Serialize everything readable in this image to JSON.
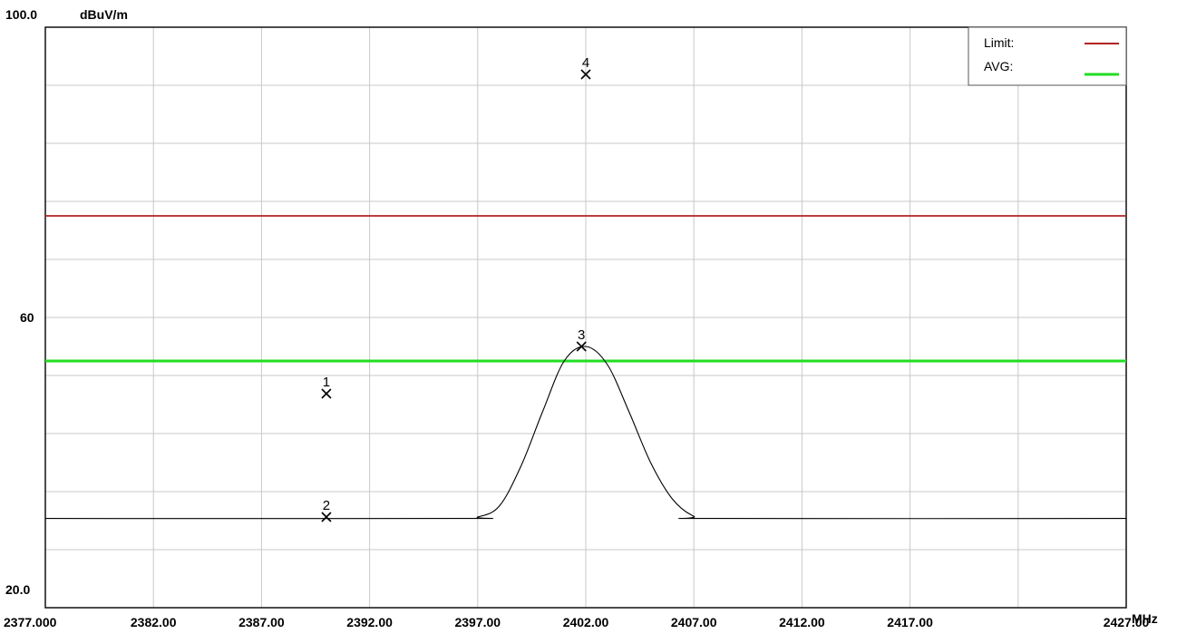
{
  "chart_data": {
    "type": "line",
    "y_unit_label": "dBuV/m",
    "x_unit_label": "MHz",
    "xlim": [
      2377.0,
      2427.0
    ],
    "ylim": [
      20.0,
      100.0
    ],
    "x_ticks": [
      2377.0,
      2382.0,
      2387.0,
      2392.0,
      2397.0,
      2402.0,
      2407.0,
      2412.0,
      2417.0,
      2427.0
    ],
    "x_tick_labels": [
      "2377.000",
      "2382.00",
      "2387.00",
      "2392.00",
      "2397.00",
      "2402.00",
      "2407.00",
      "2412.00",
      "2417.00",
      "2427.00"
    ],
    "y_tick_values": [
      100.0,
      60.0,
      20.0
    ],
    "y_tick_labels": [
      "100.0",
      "60",
      "20.0"
    ],
    "grid": true,
    "x_gridlines": [
      2377.0,
      2382.0,
      2387.0,
      2392.0,
      2397.0,
      2402.0,
      2407.0,
      2412.0,
      2417.0,
      2422.0,
      2427.0
    ],
    "y_gridlines": [
      20,
      28,
      36,
      44,
      52,
      60,
      68,
      76,
      84,
      92,
      100
    ],
    "legend_position": "top-right",
    "legend": [
      {
        "label": "Limit:",
        "color": "#b22222"
      },
      {
        "label": "AVG:",
        "color": "#22dd22"
      }
    ],
    "limit_lines": [
      {
        "name": "Limit",
        "value": 74.0,
        "color": "#b22222"
      },
      {
        "name": "AVG",
        "value": 54.0,
        "color": "#22dd22"
      }
    ],
    "series": [
      {
        "color": "#000000",
        "x": [
          2377.0,
          2396.0,
          2397.0,
          2398.0,
          2399.0,
          2400.0,
          2401.0,
          2402.0,
          2403.0,
          2404.0,
          2405.0,
          2406.0,
          2407.0,
          2408.0,
          2427.0
        ],
        "y": [
          32.3,
          32.3,
          32.5,
          34.0,
          39.5,
          47.0,
          54.0,
          56.0,
          53.5,
          47.0,
          40.0,
          35.0,
          32.6,
          32.3,
          32.3
        ]
      }
    ],
    "markers": [
      {
        "label": "1",
        "x": 2390.0,
        "y": 49.5
      },
      {
        "label": "2",
        "x": 2390.0,
        "y": 32.5
      },
      {
        "label": "3",
        "x": 2401.8,
        "y": 56.0
      },
      {
        "label": "4",
        "x": 2402.0,
        "y": 93.5
      }
    ]
  }
}
